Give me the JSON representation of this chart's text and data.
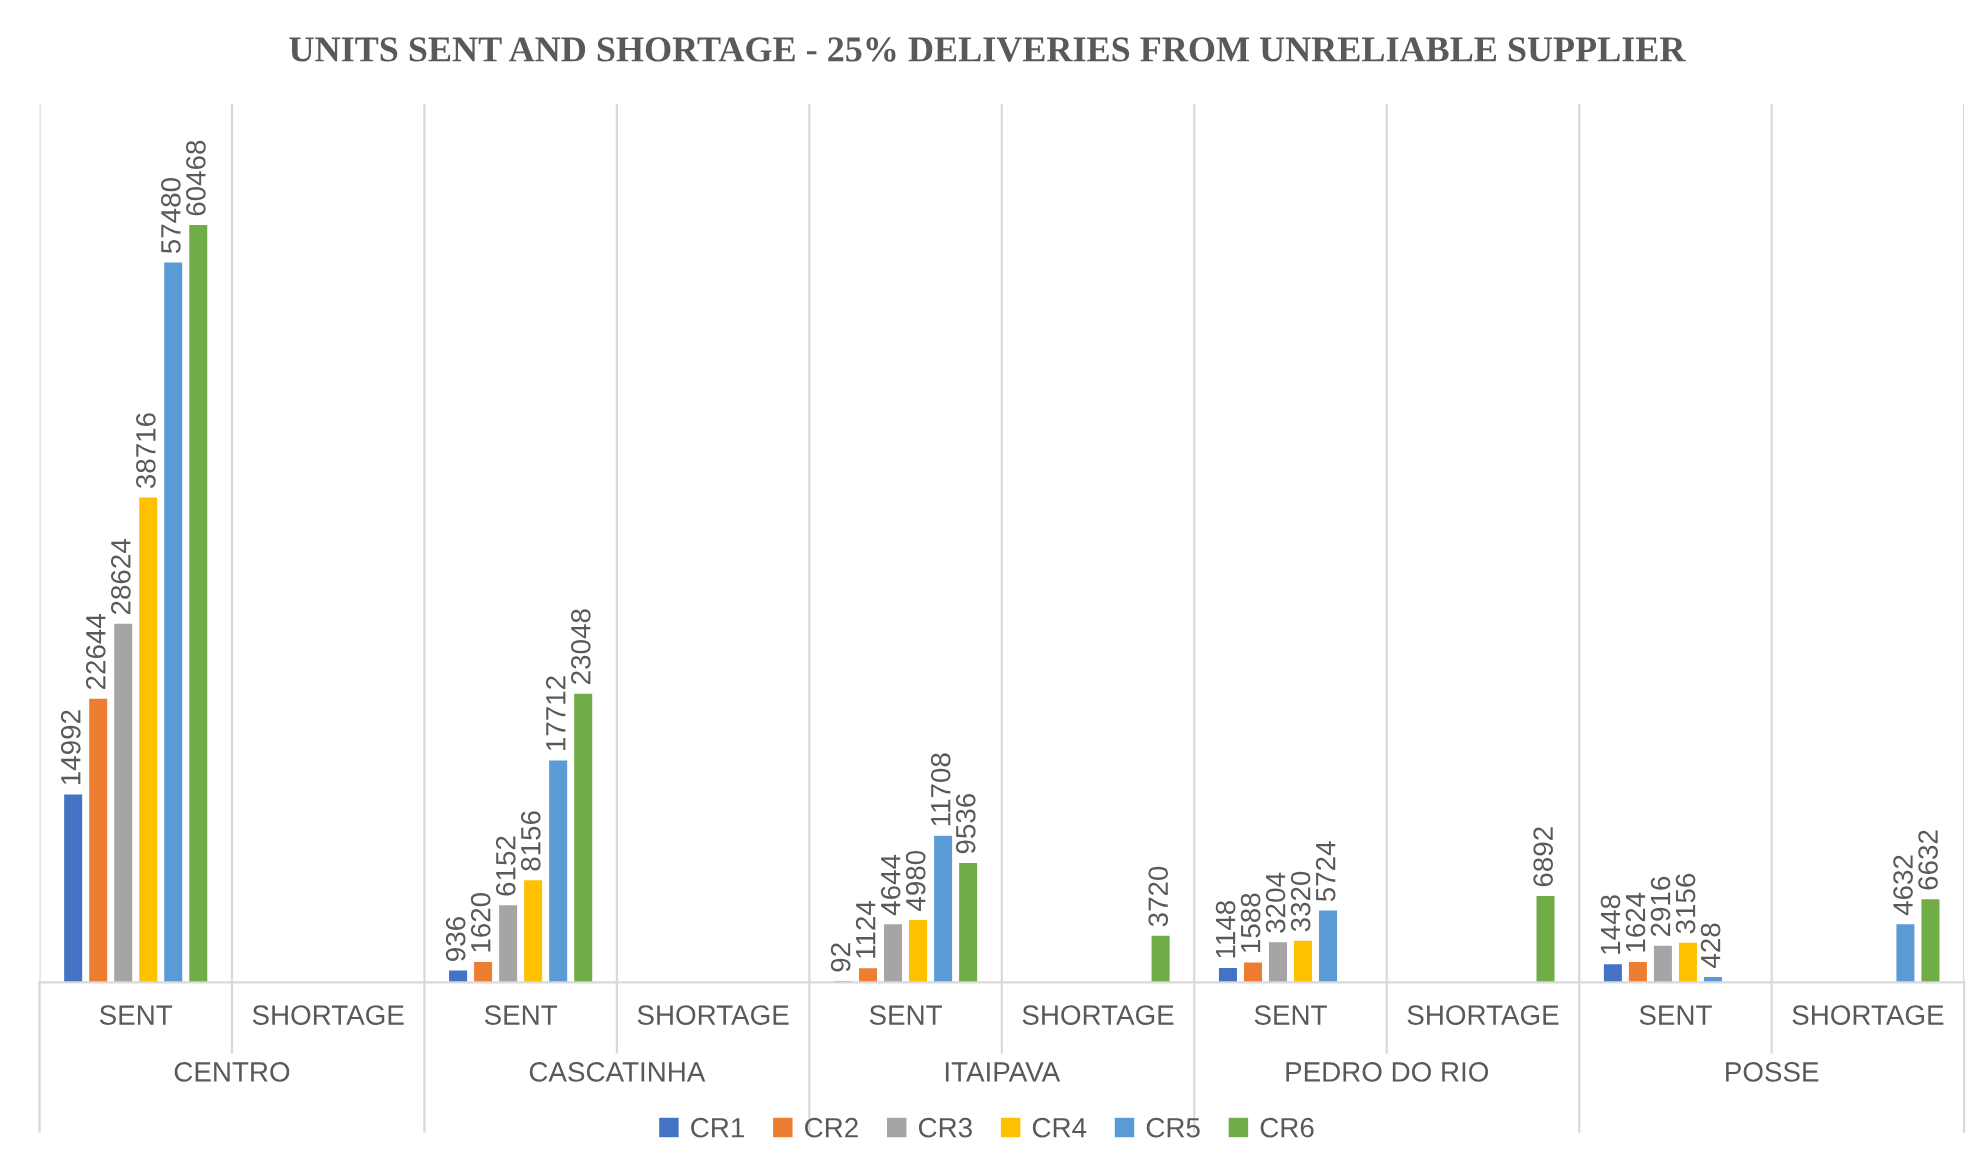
{
  "chart_data": {
    "type": "bar",
    "title": "UNITS SENT AND SHORTAGE - 25% DELIVERIES FROM UNRELIABLE SUPPLIER",
    "categories": [
      "SENT",
      "SHORTAGE",
      "SENT",
      "SHORTAGE",
      "SENT",
      "SHORTAGE",
      "SENT",
      "SHORTAGE",
      "SENT",
      "SHORTAGE"
    ],
    "annotations": [
      "CENTRO",
      "CASCATINHA",
      "ITAIPAVA",
      "PEDRO DO RIO",
      "POSSE"
    ],
    "series": [
      {
        "name": "CR1",
        "color": "#4472c4",
        "values": [
          14992,
          0,
          936,
          0,
          92,
          0,
          1148,
          0,
          1448,
          0
        ],
        "value_labels": [
          "14992",
          null,
          "936",
          null,
          "92",
          null,
          "1148",
          null,
          "1448",
          null
        ]
      },
      {
        "name": "CR2",
        "color": "#ed7d31",
        "values": [
          22644,
          0,
          1620,
          0,
          1124,
          0,
          1588,
          0,
          1624,
          0
        ],
        "value_labels": [
          "22644",
          null,
          "1620",
          null,
          "1124",
          null,
          "1588",
          null,
          "1624",
          null
        ]
      },
      {
        "name": "CR3",
        "color": "#a5a5a5",
        "values": [
          28624,
          0,
          6152,
          0,
          4644,
          0,
          3204,
          0,
          2916,
          0
        ],
        "value_labels": [
          "28624",
          null,
          "6152",
          null,
          "4644",
          null,
          "3204",
          null,
          "2916",
          null
        ]
      },
      {
        "name": "CR4",
        "color": "#ffc000",
        "values": [
          38716,
          0,
          8156,
          0,
          4980,
          0,
          3320,
          0,
          3156,
          0
        ],
        "value_labels": [
          "38716",
          null,
          "8156",
          null,
          "4980",
          null,
          "3320",
          null,
          "3156",
          null
        ]
      },
      {
        "name": "CR5",
        "color": "#5b9bd5",
        "values": [
          57480,
          0,
          17712,
          0,
          11708,
          0,
          5724,
          0,
          428,
          4632
        ],
        "value_labels": [
          "57480",
          null,
          "17712",
          null,
          "11708",
          null,
          "5724",
          null,
          "428",
          "4632"
        ]
      },
      {
        "name": "CR6",
        "color": "#70ad47",
        "values": [
          60468,
          0,
          23048,
          0,
          9536,
          3720,
          0,
          6892,
          0,
          6632
        ],
        "value_labels": [
          "60468",
          null,
          "23048",
          null,
          "9536",
          "3720",
          null,
          "6892",
          null,
          "6632"
        ]
      }
    ],
    "legend": "bottom",
    "tick_labels": "x"
  }
}
